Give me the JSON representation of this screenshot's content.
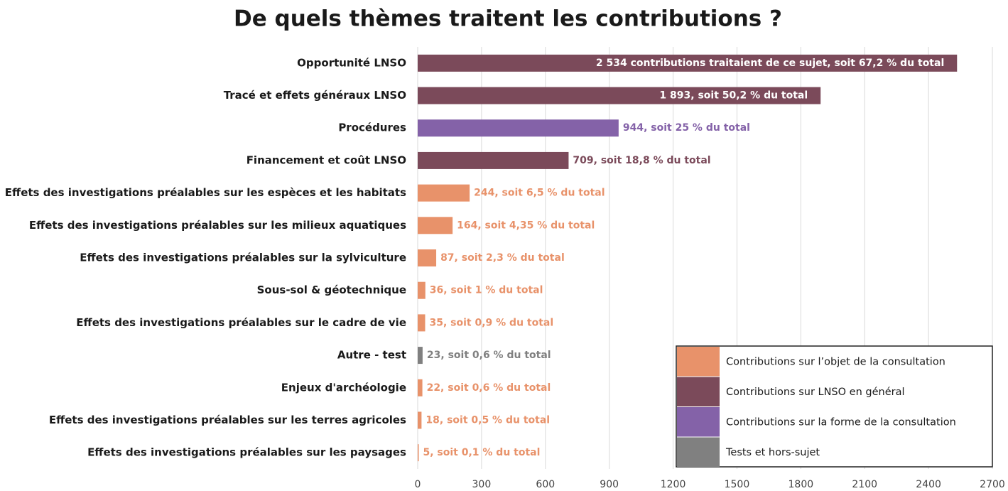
{
  "chart_data": {
    "type": "barh",
    "title": "De quels thèmes traitent les contributions ?",
    "categories": [
      "Opportunité LNSO",
      "Tracé et effets généraux LNSO",
      "Procédures",
      "Financement et coût LNSO",
      "Effets des investigations préalables sur les espèces et les habitats",
      "Effets des investigations préalables sur les milieux aquatiques",
      "Effets des investigations préalables sur la sylviculture",
      "Sous-sol & géotechnique",
      "Effets des investigations préalables sur le cadre de vie",
      "Autre - test",
      "Enjeux d'archéologie",
      "Effets des investigations préalables sur les terres agricoles",
      "Effets des investigations préalables sur les paysages"
    ],
    "values": [
      2534,
      1893,
      944,
      709,
      244,
      164,
      87,
      36,
      35,
      23,
      22,
      18,
      5
    ],
    "value_labels": [
      "2 534 contributions traitaient de ce sujet, soit 67,2 % du total",
      "1 893, soit 50,2 % du total",
      "944, soit 25 % du total",
      "709, soit 18,8 % du total",
      "244, soit 6,5 % du total",
      "164, soit 4,35 % du total",
      "87, soit 2,3 % du total",
      "36, soit 1 % du total",
      "35, soit 0,9 % du total",
      "23, soit 0,6 % du total",
      "22, soit 0,6 % du total",
      "18, soit 0,5 % du total",
      "5, soit 0,1 % du total"
    ],
    "colors": [
      "#7b4a5a",
      "#7b4a5a",
      "#8462a8",
      "#7b4a5a",
      "#e8926a",
      "#e8926a",
      "#e8926a",
      "#e8926a",
      "#e8926a",
      "#808080",
      "#e8926a",
      "#e8926a",
      "#e8926a"
    ],
    "xlim": [
      0,
      2700
    ],
    "xticks": [
      0,
      300,
      600,
      900,
      1200,
      1500,
      1800,
      2100,
      2400,
      2700
    ],
    "grid": true,
    "legend": {
      "position": "lower right",
      "entries": [
        {
          "label": "Contributions sur l’objet de la consultation",
          "color": "#e8926a"
        },
        {
          "label": "Contributions sur LNSO en général",
          "color": "#7b4a5a"
        },
        {
          "label": "Contributions sur la forme de la consultation",
          "color": "#8462a8"
        },
        {
          "label": "Tests et hors-sujet",
          "color": "#808080"
        }
      ]
    }
  }
}
